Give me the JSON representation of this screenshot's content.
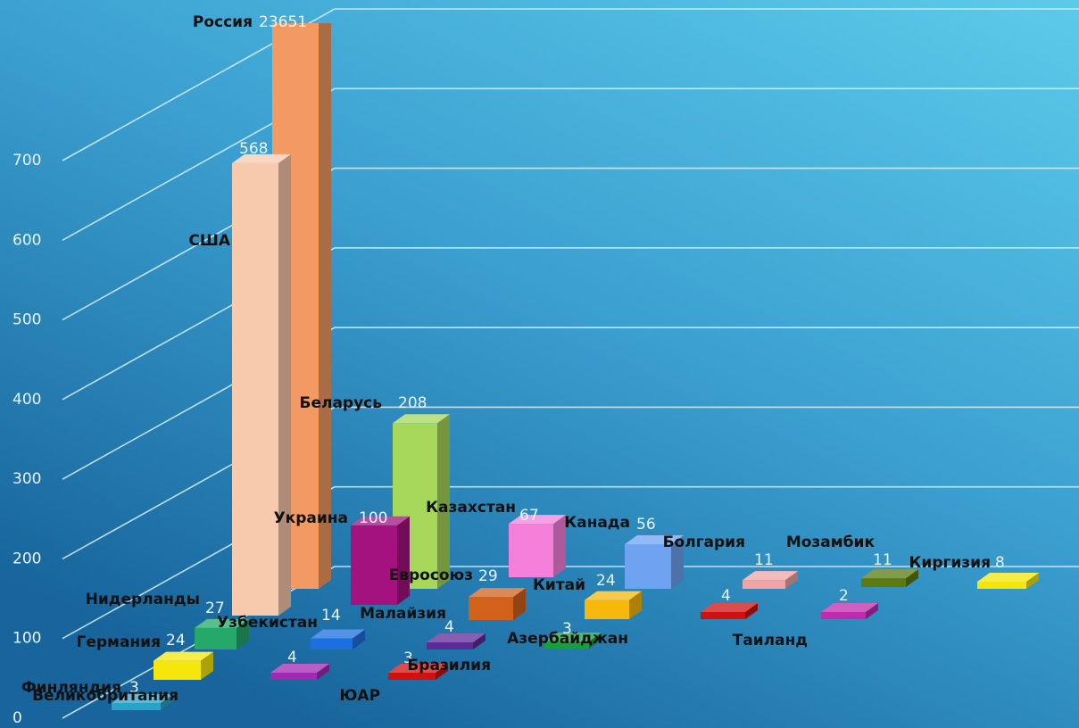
{
  "chart_data": {
    "type": "bar3d",
    "categories": [
      "Россия",
      "США",
      "Беларусь",
      "Украина",
      "Казахстан",
      "Канада",
      "Евросоюз",
      "Китай",
      "Болгария",
      "Мозамбик",
      "Киргизия",
      "Нидерланды",
      "Узбекистан",
      "Малайзия",
      "Германия",
      "Финляндия",
      "Великобритания",
      "ЮАР",
      "Бразилия",
      "Азербайджан",
      "Таиланд"
    ],
    "values": [
      23651,
      568,
      208,
      100,
      67,
      56,
      29,
      24,
      11,
      11,
      8,
      27,
      14,
      4,
      24,
      3,
      4,
      3,
      3,
      4,
      2
    ],
    "colors": [
      "#f39a62",
      "#f7c9ad",
      "#a6d65a",
      "#a3127f",
      "#f580dc",
      "#6ea3f2",
      "#d2611c",
      "#f7b80c",
      "#f2a3a3",
      "#5c7a10",
      "#f2e60c",
      "#25a86a",
      "#1c6fe0",
      "#5e2a96",
      "#f5e60c",
      "#2aa3c9",
      "#a02ab4",
      "#d11010",
      "#14a03c",
      "#d11010",
      "#c02aae"
    ],
    "ylim": [
      0,
      700
    ],
    "yticks": [
      0,
      100,
      200,
      300,
      400,
      500,
      600,
      700
    ],
    "grid": true
  }
}
